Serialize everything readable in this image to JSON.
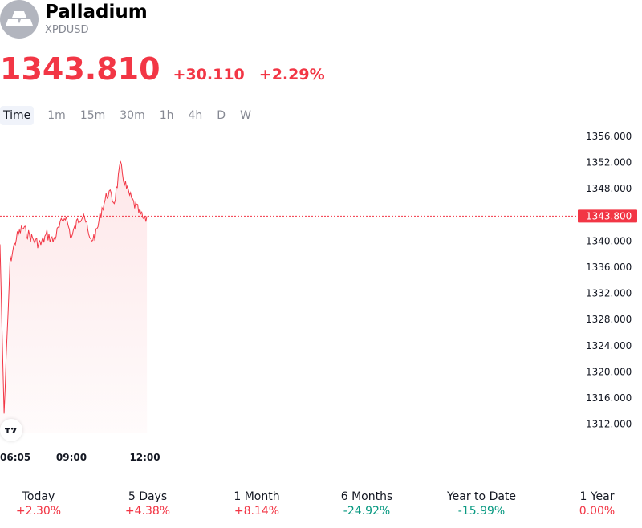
{
  "header": {
    "logo_icon": "gold-bars-icon",
    "title": "Palladium",
    "symbol": "XPDUSD"
  },
  "quote": {
    "price": "1343.810",
    "change": "+30.110",
    "change_percent": "+2.29%",
    "color": "#f23645"
  },
  "timeframes": [
    "Time",
    "1m",
    "15m",
    "30m",
    "1h",
    "4h",
    "D",
    "W"
  ],
  "active_timeframe": "Time",
  "chart_data": {
    "type": "line",
    "x_labels": [
      "06:05",
      "09:00",
      "12:00"
    ],
    "y_ticks": [
      "1356.000",
      "1352.000",
      "1348.000",
      "1344.000",
      "1340.000",
      "1336.000",
      "1332.000",
      "1328.000",
      "1324.000",
      "1320.000",
      "1316.000",
      "1312.000"
    ],
    "ylim": [
      1310,
      1358
    ],
    "last_price_label": "1343.800",
    "last_price": 1343.8,
    "series_color": "#f23645",
    "x": [
      "06:05",
      "06:15",
      "06:30",
      "06:45",
      "07:00",
      "07:15",
      "07:30",
      "07:45",
      "08:00",
      "08:15",
      "08:30",
      "08:45",
      "09:00",
      "09:15",
      "09:30",
      "09:45",
      "10:00",
      "10:15",
      "10:30",
      "10:45",
      "11:00",
      "11:15",
      "11:30",
      "11:45",
      "12:00",
      "12:05"
    ],
    "values": [
      1339.5,
      1313.6,
      1337.0,
      1340.5,
      1342.0,
      1341.0,
      1340.0,
      1339.5,
      1341.0,
      1340.0,
      1342.0,
      1344.0,
      1340.5,
      1343.0,
      1344.5,
      1340.0,
      1341.0,
      1345.0,
      1347.5,
      1346.0,
      1351.5,
      1348.0,
      1346.0,
      1344.5,
      1343.0,
      1343.8
    ]
  },
  "performance": [
    {
      "label": "Today",
      "value": "+2.30%",
      "direction": "up"
    },
    {
      "label": "5 Days",
      "value": "+4.38%",
      "direction": "up"
    },
    {
      "label": "1 Month",
      "value": "+8.14%",
      "direction": "up"
    },
    {
      "label": "6 Months",
      "value": "-24.92%",
      "direction": "down"
    },
    {
      "label": "Year to Date",
      "value": "-15.99%",
      "direction": "down"
    },
    {
      "label": "1 Year",
      "value": "0.00%",
      "direction": "up"
    }
  ]
}
